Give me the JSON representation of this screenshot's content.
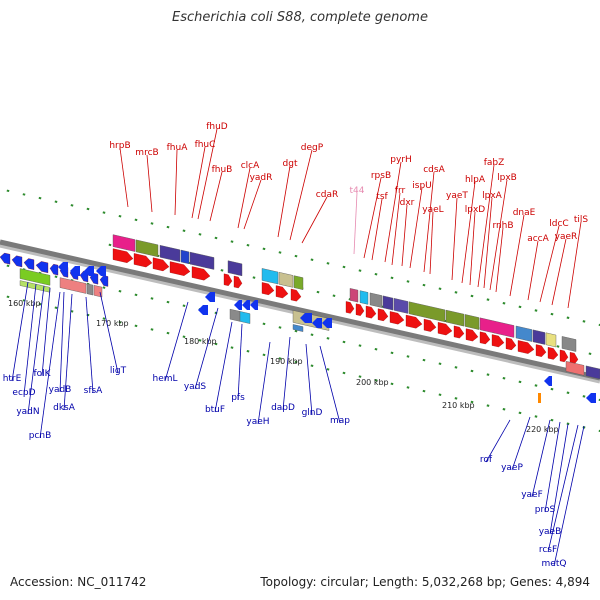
{
  "title": "Escherichia coli S88, complete genome",
  "footer": {
    "accession": "Accession: NC_011742",
    "summary": "Topology: circular; Length: 5,032,268 bp; Genes: 4,894"
  },
  "colors": {
    "backbone": "#7a7a7a",
    "tick": "#2e8b2e",
    "forward_gene": "#ee1111",
    "reverse_gene": "#1133ee",
    "trna": "#ff8800",
    "top_label": "#cc0000",
    "pseudo_label": "#e68ab0",
    "bottom_label": "#0000aa"
  },
  "kbp_markers": [
    "160 kbp",
    "170 kbp",
    "180 kbp",
    "190 kbp",
    "200 kbp",
    "210 kbp",
    "220 kbp"
  ],
  "forward_genes": [
    "hrpB",
    "mrcB",
    "fhuA",
    "fhuC",
    "fhuD",
    "fhuB",
    "clcA",
    "yadR",
    "dgt",
    "degP",
    "cdaR",
    "rpsB",
    "tsf",
    "pyrH",
    "frr",
    "dxr",
    "ispU",
    "cdsA",
    "yaeL",
    "yaeT",
    "hlpA",
    "lpxD",
    "fabZ",
    "lpxA",
    "lpxB",
    "rnhB",
    "dnaE",
    "accA",
    "ldcC",
    "yaeR",
    "tilS"
  ],
  "pseudo_genes": [
    "t44"
  ],
  "reverse_genes": [
    "htrE",
    "ecpD",
    "yadN",
    "folK",
    "pcnB",
    "yadB",
    "dksA",
    "sfsA",
    "ligT",
    "hemL",
    "yadS",
    "btuF",
    "pfs",
    "yaeH",
    "dapD",
    "glnD",
    "map",
    "rof",
    "yaeP",
    "yaeF",
    "proS",
    "yaeB",
    "rcsF",
    "metQ"
  ]
}
